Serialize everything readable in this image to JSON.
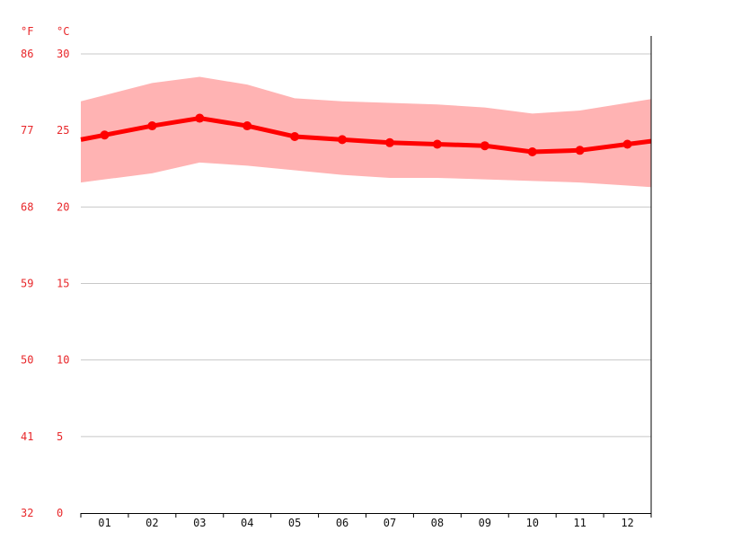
{
  "chart_data": {
    "type": "line",
    "unit_left": "°F",
    "unit_right": "°C",
    "categories": [
      "01",
      "02",
      "03",
      "04",
      "05",
      "06",
      "07",
      "08",
      "09",
      "10",
      "11",
      "12"
    ],
    "yticks_c": [
      0,
      5,
      10,
      15,
      20,
      25,
      30
    ],
    "yticks_f": [
      "32",
      "41",
      "50",
      "59",
      "68",
      "77",
      "86"
    ],
    "ylim": [
      0,
      30
    ],
    "grid": true,
    "colors": {
      "line": "#ff0000",
      "band": "#ffb3b3",
      "label": "#e8272a",
      "grid": "#c8c8c8"
    },
    "series": [
      {
        "values": [
          24.7,
          25.3,
          25.8,
          25.3,
          24.6,
          24.4,
          24.2,
          24.1,
          24.0,
          23.6,
          23.7,
          24.1
        ]
      }
    ],
    "band": {
      "low": [
        21.8,
        22.2,
        22.9,
        22.7,
        22.4,
        22.1,
        21.9,
        21.9,
        21.8,
        21.7,
        21.6,
        21.4
      ],
      "high": [
        27.3,
        28.1,
        28.5,
        28.0,
        27.1,
        26.9,
        26.8,
        26.7,
        26.5,
        26.1,
        26.3,
        26.8
      ]
    }
  }
}
